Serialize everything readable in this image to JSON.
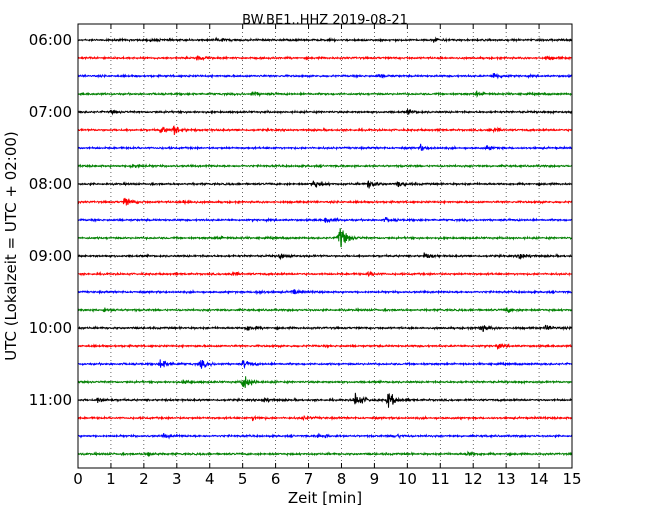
{
  "chart_data": {
    "type": "line",
    "title": "BW.BE1..HHZ 2019-08-21",
    "xlabel": "Zeit  [min]",
    "ylabel": "UTC (Lokalzeit = UTC + 02:00)",
    "xlim": [
      0,
      15
    ],
    "x_ticks": [
      "0",
      "1",
      "2",
      "3",
      "4",
      "5",
      "6",
      "7",
      "8",
      "9",
      "10",
      "11",
      "12",
      "13",
      "14",
      "15"
    ],
    "y_tick_labels": [
      "06:00",
      "07:00",
      "08:00",
      "09:00",
      "10:00",
      "11:00"
    ],
    "grid": "vertical dotted at each minute",
    "trace_colors": [
      "#000000",
      "#ff0000",
      "#0000ff",
      "#008000"
    ],
    "traces_per_hour": 4,
    "minutes_per_trace": 15,
    "traces": [
      {
        "start": "06:00",
        "color": "#000000",
        "amplitude": 1.0,
        "events": [
          {
            "t": 2.2,
            "a": 2
          },
          {
            "t": 4.2,
            "a": 3
          },
          {
            "t": 10.8,
            "a": 3
          }
        ]
      },
      {
        "start": "06:15",
        "color": "#ff0000",
        "amplitude": 1.0,
        "events": [
          {
            "t": 3.6,
            "a": 4
          },
          {
            "t": 14.2,
            "a": 3
          }
        ]
      },
      {
        "start": "06:30",
        "color": "#0000ff",
        "amplitude": 1.0,
        "events": [
          {
            "t": 9.1,
            "a": 3
          },
          {
            "t": 12.6,
            "a": 5
          }
        ]
      },
      {
        "start": "06:45",
        "color": "#008000",
        "amplitude": 1.0,
        "events": [
          {
            "t": 5.3,
            "a": 3
          },
          {
            "t": 12.1,
            "a": 4
          }
        ]
      },
      {
        "start": "07:00",
        "color": "#000000",
        "amplitude": 1.0,
        "events": [
          {
            "t": 1.0,
            "a": 2
          },
          {
            "t": 10.0,
            "a": 3
          }
        ]
      },
      {
        "start": "07:15",
        "color": "#ff0000",
        "amplitude": 1.0,
        "events": [
          {
            "t": 2.5,
            "a": 5
          },
          {
            "t": 2.9,
            "a": 6
          },
          {
            "t": 12.5,
            "a": 5
          }
        ]
      },
      {
        "start": "07:30",
        "color": "#0000ff",
        "amplitude": 1.0,
        "events": [
          {
            "t": 10.4,
            "a": 4
          },
          {
            "t": 12.4,
            "a": 3
          }
        ]
      },
      {
        "start": "07:45",
        "color": "#008000",
        "amplitude": 1.0,
        "events": [
          {
            "t": 1.6,
            "a": 4
          }
        ]
      },
      {
        "start": "08:00",
        "color": "#000000",
        "amplitude": 1.0,
        "events": [
          {
            "t": 7.1,
            "a": 6
          },
          {
            "t": 8.8,
            "a": 7
          },
          {
            "t": 9.7,
            "a": 4
          }
        ]
      },
      {
        "start": "08:15",
        "color": "#ff0000",
        "amplitude": 1.0,
        "events": [
          {
            "t": 1.4,
            "a": 8
          },
          {
            "t": 3.2,
            "a": 3
          }
        ]
      },
      {
        "start": "08:30",
        "color": "#0000ff",
        "amplitude": 1.0,
        "events": [
          {
            "t": 7.5,
            "a": 5
          },
          {
            "t": 9.3,
            "a": 3
          }
        ]
      },
      {
        "start": "08:45",
        "color": "#008000",
        "amplitude": 1.0,
        "events": [
          {
            "t": 7.9,
            "a": 22
          },
          {
            "t": 4.2,
            "a": 3
          }
        ]
      },
      {
        "start": "09:00",
        "color": "#000000",
        "amplitude": 1.0,
        "events": [
          {
            "t": 6.1,
            "a": 4
          },
          {
            "t": 10.5,
            "a": 4
          },
          {
            "t": 13.4,
            "a": 5
          }
        ]
      },
      {
        "start": "09:15",
        "color": "#ff0000",
        "amplitude": 1.0,
        "events": [
          {
            "t": 4.6,
            "a": 4
          },
          {
            "t": 8.8,
            "a": 3
          }
        ]
      },
      {
        "start": "09:30",
        "color": "#0000ff",
        "amplitude": 1.0,
        "events": [
          {
            "t": 6.5,
            "a": 4
          },
          {
            "t": 5.4,
            "a": 3
          }
        ]
      },
      {
        "start": "09:45",
        "color": "#008000",
        "amplitude": 1.0,
        "events": [
          {
            "t": 0.8,
            "a": 3
          },
          {
            "t": 13.0,
            "a": 4
          }
        ]
      },
      {
        "start": "10:00",
        "color": "#000000",
        "amplitude": 1.0,
        "events": [
          {
            "t": 5.1,
            "a": 5
          },
          {
            "t": 12.2,
            "a": 6
          },
          {
            "t": 14.2,
            "a": 4
          }
        ]
      },
      {
        "start": "10:15",
        "color": "#ff0000",
        "amplitude": 1.0,
        "events": [
          {
            "t": 12.7,
            "a": 3
          }
        ]
      },
      {
        "start": "10:30",
        "color": "#0000ff",
        "amplitude": 1.0,
        "events": [
          {
            "t": 2.5,
            "a": 9
          },
          {
            "t": 3.7,
            "a": 7
          },
          {
            "t": 5.0,
            "a": 5
          }
        ]
      },
      {
        "start": "10:45",
        "color": "#008000",
        "amplitude": 1.0,
        "events": [
          {
            "t": 5.0,
            "a": 14
          },
          {
            "t": 3.2,
            "a": 3
          }
        ]
      },
      {
        "start": "11:00",
        "color": "#000000",
        "amplitude": 1.0,
        "events": [
          {
            "t": 8.4,
            "a": 12
          },
          {
            "t": 9.4,
            "a": 14
          },
          {
            "t": 0.6,
            "a": 4
          },
          {
            "t": 5.6,
            "a": 4
          }
        ]
      },
      {
        "start": "11:15",
        "color": "#ff0000",
        "amplitude": 1.0,
        "events": [
          {
            "t": 5.3,
            "a": 3
          },
          {
            "t": 6.8,
            "a": 3
          }
        ]
      },
      {
        "start": "11:30",
        "color": "#0000ff",
        "amplitude": 1.0,
        "events": [
          {
            "t": 2.6,
            "a": 3
          },
          {
            "t": 7.3,
            "a": 3
          },
          {
            "t": 9.6,
            "a": 3
          }
        ]
      },
      {
        "start": "11:45",
        "color": "#008000",
        "amplitude": 1.0,
        "events": [
          {
            "t": 2.1,
            "a": 3
          },
          {
            "t": 11.8,
            "a": 3
          }
        ]
      }
    ]
  }
}
